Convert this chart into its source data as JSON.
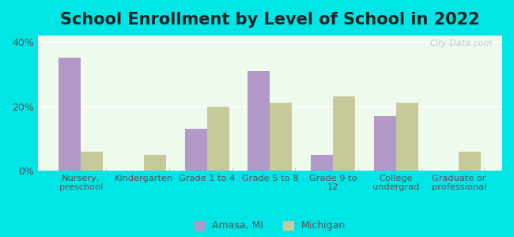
{
  "title": "School Enrollment by Level of School in 2022",
  "categories": [
    "Nursery,\npreschool",
    "Kindergarten",
    "Grade 1 to 4",
    "Grade 5 to 8",
    "Grade 9 to\n12",
    "College\nundergrad",
    "Graduate or\nprofessional"
  ],
  "amasa_values": [
    35,
    0,
    13,
    31,
    5,
    17,
    0
  ],
  "michigan_values": [
    6,
    5,
    20,
    21,
    23,
    21,
    6
  ],
  "amasa_color": "#b399c8",
  "michigan_color": "#c8c99b",
  "background_outer": "#00e5e5",
  "background_inner_top": "#f5fff5",
  "background_inner_bottom": "#e0f5e0",
  "ylim": [
    0,
    42
  ],
  "yticks": [
    0,
    20,
    40
  ],
  "ytick_labels": [
    "0%",
    "20%",
    "40%"
  ],
  "title_fontsize": 15,
  "legend_labels": [
    "Amasa, MI",
    "Michigan"
  ],
  "bar_width": 0.35,
  "watermark": "City-Data.com"
}
